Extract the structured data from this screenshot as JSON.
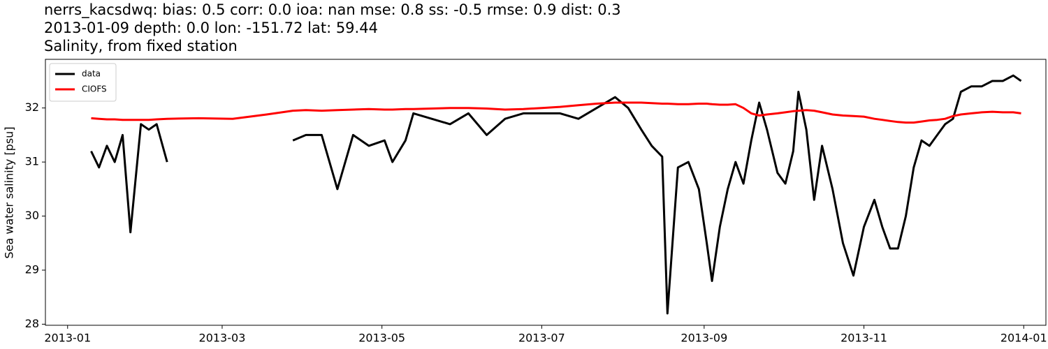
{
  "chart_data": {
    "type": "line",
    "title": "nerrs_kacsdwq: bias: 0.5  corr: 0.0  ioa: nan  mse: 0.8  ss: -0.5  rmse: 0.9  dist: 0.3",
    "subtitle": "2013-01-09 depth: 0.0 lon: -151.72 lat: 59.44",
    "caption": "Salinity, from fixed station",
    "y_label": "Sea water salinity [psu]",
    "legend": "upper left",
    "x": [
      "2013-01-10",
      "2013-01-13",
      "2013-01-16",
      "2013-01-19",
      "2013-01-22",
      "2013-01-25",
      "2013-01-29",
      "2013-02-01",
      "2013-02-04",
      "2013-02-08",
      "2013-02-20",
      "2013-03-05",
      "2013-03-18",
      "2013-03-28",
      "2013-04-02",
      "2013-04-08",
      "2013-04-14",
      "2013-04-20",
      "2013-04-26",
      "2013-05-02",
      "2013-05-05",
      "2013-05-10",
      "2013-05-13",
      "2013-05-20",
      "2013-05-27",
      "2013-06-03",
      "2013-06-10",
      "2013-06-17",
      "2013-06-24",
      "2013-07-01",
      "2013-07-08",
      "2013-07-15",
      "2013-07-22",
      "2013-07-29",
      "2013-08-03",
      "2013-08-08",
      "2013-08-12",
      "2013-08-16",
      "2013-08-18",
      "2013-08-22",
      "2013-08-26",
      "2013-08-30",
      "2013-09-02",
      "2013-09-04",
      "2013-09-07",
      "2013-09-10",
      "2013-09-13",
      "2013-09-16",
      "2013-09-19",
      "2013-09-22",
      "2013-09-25",
      "2013-09-29",
      "2013-10-02",
      "2013-10-05",
      "2013-10-07",
      "2013-10-10",
      "2013-10-13",
      "2013-10-16",
      "2013-10-20",
      "2013-10-24",
      "2013-10-28",
      "2013-11-01",
      "2013-11-05",
      "2013-11-08",
      "2013-11-11",
      "2013-11-14",
      "2013-11-17",
      "2013-11-20",
      "2013-11-23",
      "2013-11-26",
      "2013-11-29",
      "2013-12-02",
      "2013-12-05",
      "2013-12-08",
      "2013-12-12",
      "2013-12-16",
      "2013-12-20",
      "2013-12-24",
      "2013-12-28",
      "2013-12-31"
    ],
    "series": [
      {
        "name": "data",
        "color": "#000000",
        "values": [
          31.2,
          30.9,
          31.3,
          31.0,
          31.5,
          29.7,
          31.7,
          31.6,
          31.7,
          31.0,
          null,
          null,
          null,
          31.4,
          31.5,
          31.5,
          30.5,
          31.5,
          31.3,
          31.4,
          31.0,
          31.4,
          31.9,
          31.8,
          31.7,
          31.9,
          31.5,
          31.8,
          31.9,
          31.9,
          31.9,
          31.8,
          32.0,
          32.2,
          32.0,
          31.6,
          31.3,
          31.1,
          28.2,
          30.9,
          31.0,
          30.5,
          29.5,
          28.8,
          29.8,
          30.5,
          31.0,
          30.6,
          31.4,
          32.1,
          31.6,
          30.8,
          30.6,
          31.2,
          32.3,
          31.6,
          30.3,
          31.3,
          30.5,
          29.5,
          28.9,
          29.8,
          30.3,
          29.8,
          29.4,
          29.4,
          30.0,
          30.9,
          31.4,
          31.3,
          31.5,
          31.7,
          31.8,
          32.3,
          32.4,
          32.4,
          32.5,
          32.5,
          32.6,
          32.5
        ]
      },
      {
        "name": "CIOFS",
        "color": "#ff0000",
        "values": [
          31.81,
          31.8,
          31.79,
          31.79,
          31.78,
          31.78,
          31.78,
          31.78,
          31.79,
          31.8,
          31.81,
          31.8,
          31.88,
          31.95,
          31.96,
          31.95,
          31.96,
          31.97,
          31.98,
          31.97,
          31.97,
          31.98,
          31.98,
          31.99,
          32.0,
          32.0,
          31.99,
          31.97,
          31.98,
          32.0,
          32.02,
          32.05,
          32.08,
          32.1,
          32.1,
          32.1,
          32.09,
          32.08,
          32.08,
          32.07,
          32.07,
          32.08,
          32.08,
          32.07,
          32.06,
          32.06,
          32.07,
          32.0,
          31.9,
          31.86,
          31.88,
          31.9,
          31.92,
          31.94,
          31.95,
          31.96,
          31.95,
          31.92,
          31.88,
          31.86,
          31.85,
          31.84,
          31.8,
          31.78,
          31.76,
          31.74,
          31.73,
          31.73,
          31.75,
          31.77,
          31.78,
          31.8,
          31.85,
          31.88,
          31.9,
          31.92,
          31.93,
          31.92,
          31.92,
          31.9
        ]
      }
    ],
    "xlim": [
      "2013-01",
      "2014-01"
    ],
    "xticks": [
      "2013-01",
      "2013-03",
      "2013-05",
      "2013-07",
      "2013-09",
      "2013-11",
      "2014-01"
    ],
    "ylim": [
      27.98,
      32.9
    ],
    "yticks": [
      28,
      29,
      30,
      31,
      32
    ],
    "grid": false
  }
}
